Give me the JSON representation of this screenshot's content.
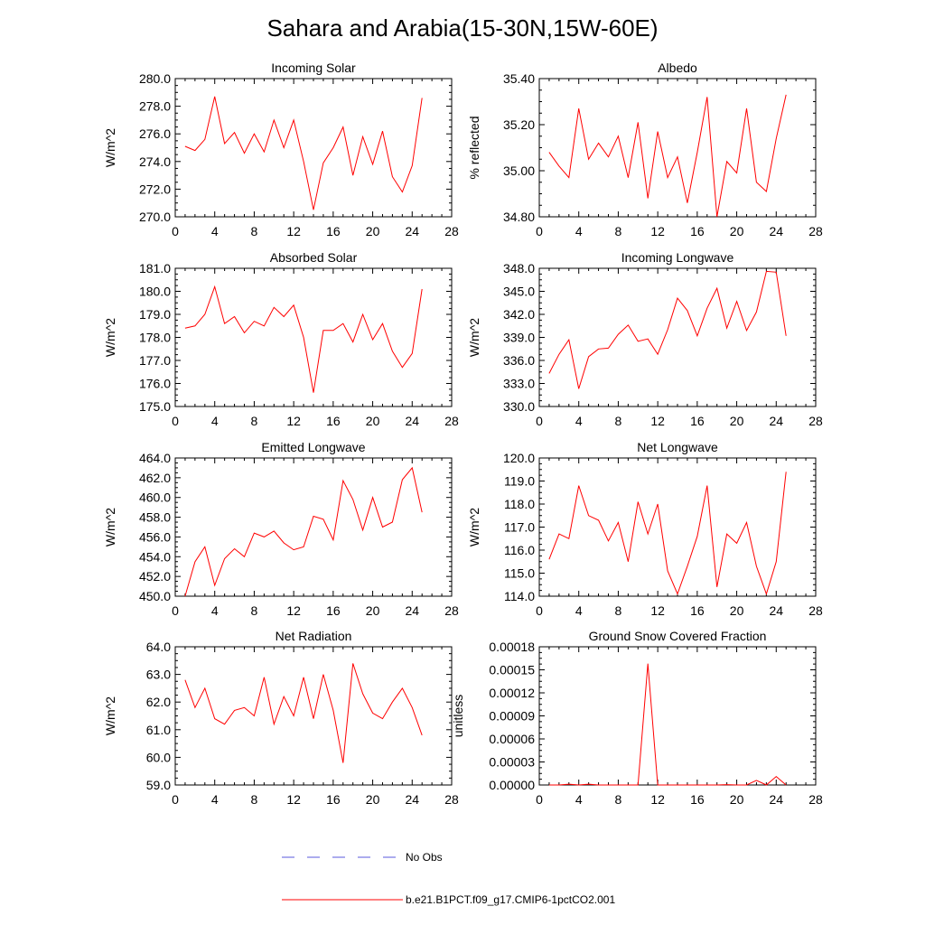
{
  "figure": {
    "title": "Sahara and Arabia(15-30N,15W-60E)"
  },
  "colors": {
    "model_line": "#ff0000",
    "obs_line": "#5a5adc",
    "axis": "#000000"
  },
  "legend": {
    "items": [
      {
        "label": "No Obs",
        "style": "dashed",
        "color": "#5a5adc"
      },
      {
        "label": "b.e21.B1PCT.f09_g17.CMIP6-1pctCO2.001",
        "style": "solid",
        "color": "#ff0000"
      }
    ]
  },
  "chart_data": [
    {
      "type": "line",
      "title": "Incoming Solar",
      "ylabel": "W/m^2",
      "xlim": [
        0,
        28
      ],
      "ylim": [
        270,
        280
      ],
      "xticks": [
        0,
        4,
        8,
        12,
        16,
        20,
        24,
        28
      ],
      "yticks": [
        "270.0",
        "272.0",
        "274.0",
        "276.0",
        "278.0",
        "280.0"
      ],
      "x": [
        1,
        2,
        3,
        4,
        5,
        6,
        7,
        8,
        9,
        10,
        11,
        12,
        13,
        14,
        15,
        16,
        17,
        18,
        19,
        20,
        21,
        22,
        23,
        24,
        25
      ],
      "series": [
        {
          "values": [
            275.1,
            274.8,
            275.6,
            278.7,
            275.3,
            276.1,
            274.6,
            276.0,
            274.7,
            277.0,
            275.0,
            277.0,
            274.0,
            270.5,
            273.9,
            275.0,
            276.5,
            273.0,
            275.8,
            273.8,
            276.2,
            272.9,
            271.8,
            273.7,
            278.6
          ]
        }
      ]
    },
    {
      "type": "line",
      "title": "Albedo",
      "ylabel": "% reflected",
      "xlim": [
        0,
        28
      ],
      "ylim": [
        34.8,
        35.4
      ],
      "xticks": [
        0,
        4,
        8,
        12,
        16,
        20,
        24,
        28
      ],
      "yticks": [
        "34.80",
        "35.00",
        "35.20",
        "35.40"
      ],
      "x": [
        1,
        2,
        3,
        4,
        5,
        6,
        7,
        8,
        9,
        10,
        11,
        12,
        13,
        14,
        15,
        16,
        17,
        18,
        19,
        20,
        21,
        22,
        23,
        24,
        25
      ],
      "series": [
        {
          "values": [
            35.08,
            35.02,
            34.97,
            35.27,
            35.05,
            35.12,
            35.06,
            35.15,
            34.97,
            35.21,
            34.88,
            35.17,
            34.97,
            35.06,
            34.86,
            35.08,
            35.32,
            34.8,
            35.04,
            34.99,
            35.27,
            34.95,
            34.91,
            35.14,
            35.33
          ]
        }
      ]
    },
    {
      "type": "line",
      "title": "Absorbed Solar",
      "ylabel": "W/m^2",
      "xlim": [
        0,
        28
      ],
      "ylim": [
        175,
        181
      ],
      "xticks": [
        0,
        4,
        8,
        12,
        16,
        20,
        24,
        28
      ],
      "yticks": [
        "175.0",
        "176.0",
        "177.0",
        "178.0",
        "179.0",
        "180.0",
        "181.0"
      ],
      "x": [
        1,
        2,
        3,
        4,
        5,
        6,
        7,
        8,
        9,
        10,
        11,
        12,
        13,
        14,
        15,
        16,
        17,
        18,
        19,
        20,
        21,
        22,
        23,
        24,
        25
      ],
      "series": [
        {
          "values": [
            178.4,
            178.5,
            179.0,
            180.2,
            178.6,
            178.9,
            178.2,
            178.7,
            178.5,
            179.3,
            178.9,
            179.4,
            178.0,
            175.6,
            178.3,
            178.3,
            178.6,
            177.8,
            179.0,
            177.9,
            178.6,
            177.4,
            176.7,
            177.3,
            180.1
          ]
        }
      ]
    },
    {
      "type": "line",
      "title": "Incoming Longwave",
      "ylabel": "W/m^2",
      "xlim": [
        0,
        28
      ],
      "ylim": [
        330,
        348
      ],
      "xticks": [
        0,
        4,
        8,
        12,
        16,
        20,
        24,
        28
      ],
      "yticks": [
        "330.0",
        "333.0",
        "336.0",
        "339.0",
        "342.0",
        "345.0",
        "348.0"
      ],
      "x": [
        1,
        2,
        3,
        4,
        5,
        6,
        7,
        8,
        9,
        10,
        11,
        12,
        13,
        14,
        15,
        16,
        17,
        18,
        19,
        20,
        21,
        22,
        23,
        24,
        25
      ],
      "series": [
        {
          "values": [
            334.3,
            336.8,
            338.7,
            332.3,
            336.5,
            337.5,
            337.6,
            339.4,
            340.6,
            338.5,
            338.8,
            336.8,
            340.0,
            344.1,
            342.5,
            339.2,
            342.8,
            345.4,
            340.2,
            343.7,
            339.9,
            342.3,
            347.6,
            347.5,
            339.2
          ]
        }
      ]
    },
    {
      "type": "line",
      "title": "Emitted Longwave",
      "ylabel": "W/m^2",
      "xlim": [
        0,
        28
      ],
      "ylim": [
        450,
        464
      ],
      "xticks": [
        0,
        4,
        8,
        12,
        16,
        20,
        24,
        28
      ],
      "yticks": [
        "450.0",
        "452.0",
        "454.0",
        "456.0",
        "458.0",
        "460.0",
        "462.0",
        "464.0"
      ],
      "x": [
        1,
        2,
        3,
        4,
        5,
        6,
        7,
        8,
        9,
        10,
        11,
        12,
        13,
        14,
        15,
        16,
        17,
        18,
        19,
        20,
        21,
        22,
        23,
        24,
        25
      ],
      "series": [
        {
          "values": [
            450.0,
            453.5,
            455.0,
            451.1,
            453.8,
            454.8,
            454.0,
            456.4,
            456.0,
            456.6,
            455.4,
            454.7,
            455.0,
            458.1,
            457.8,
            455.7,
            461.7,
            459.8,
            456.7,
            460.0,
            457.0,
            457.5,
            461.8,
            463.0,
            458.5
          ]
        }
      ]
    },
    {
      "type": "line",
      "title": "Net Longwave",
      "ylabel": "W/m^2",
      "xlim": [
        0,
        28
      ],
      "ylim": [
        114,
        120
      ],
      "xticks": [
        0,
        4,
        8,
        12,
        16,
        20,
        24,
        28
      ],
      "yticks": [
        "114.0",
        "115.0",
        "116.0",
        "117.0",
        "118.0",
        "119.0",
        "120.0"
      ],
      "x": [
        1,
        2,
        3,
        4,
        5,
        6,
        7,
        8,
        9,
        10,
        11,
        12,
        13,
        14,
        15,
        16,
        17,
        18,
        19,
        20,
        21,
        22,
        23,
        24,
        25
      ],
      "series": [
        {
          "values": [
            115.6,
            116.7,
            116.5,
            118.8,
            117.5,
            117.3,
            116.4,
            117.2,
            115.5,
            118.1,
            116.7,
            118.0,
            115.1,
            114.1,
            115.3,
            116.6,
            118.8,
            114.4,
            116.7,
            116.3,
            117.2,
            115.3,
            114.1,
            115.5,
            119.4
          ]
        }
      ]
    },
    {
      "type": "line",
      "title": "Net Radiation",
      "ylabel": "W/m^2",
      "xlim": [
        0,
        28
      ],
      "ylim": [
        59,
        64
      ],
      "xticks": [
        0,
        4,
        8,
        12,
        16,
        20,
        24,
        28
      ],
      "yticks": [
        "59.0",
        "60.0",
        "61.0",
        "62.0",
        "63.0",
        "64.0"
      ],
      "x": [
        1,
        2,
        3,
        4,
        5,
        6,
        7,
        8,
        9,
        10,
        11,
        12,
        13,
        14,
        15,
        16,
        17,
        18,
        19,
        20,
        21,
        22,
        23,
        24,
        25
      ],
      "series": [
        {
          "values": [
            62.8,
            61.8,
            62.5,
            61.4,
            61.2,
            61.7,
            61.8,
            61.5,
            62.9,
            61.2,
            62.2,
            61.5,
            62.9,
            61.4,
            63.0,
            61.7,
            59.8,
            63.4,
            62.3,
            61.6,
            61.4,
            62.0,
            62.5,
            61.8,
            60.8
          ]
        }
      ]
    },
    {
      "type": "line",
      "title": "Ground Snow Covered Fraction",
      "ylabel": "unitless",
      "xlim": [
        0,
        28
      ],
      "ylim": [
        0,
        0.00018
      ],
      "xticks": [
        0,
        4,
        8,
        12,
        16,
        20,
        24,
        28
      ],
      "yticks": [
        "0.00000",
        "0.00003",
        "0.00006",
        "0.00009",
        "0.00012",
        "0.00015",
        "0.00018"
      ],
      "x": [
        1,
        2,
        3,
        4,
        5,
        6,
        7,
        8,
        9,
        10,
        11,
        12,
        13,
        14,
        15,
        16,
        17,
        18,
        19,
        20,
        21,
        22,
        23,
        24,
        25
      ],
      "series": [
        {
          "values": [
            0,
            0,
            1e-06,
            0,
            1e-06,
            0,
            0,
            0,
            0,
            0,
            0.000158,
            0,
            0,
            0,
            0,
            0,
            0,
            0,
            5e-07,
            0,
            0,
            6e-06,
            0,
            1.1e-05,
            0
          ]
        }
      ]
    }
  ]
}
